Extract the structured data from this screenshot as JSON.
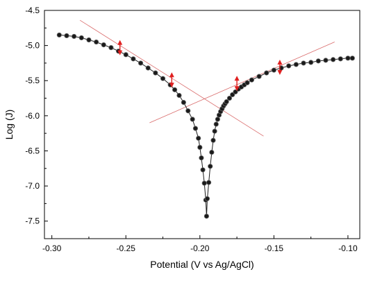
{
  "chart_data": {
    "type": "scatter",
    "title": "",
    "xlabel": "Potential (V vs Ag/AgCl)",
    "ylabel": "Log (J)",
    "xlim": [
      -0.305,
      -0.092
    ],
    "ylim": [
      -7.75,
      -4.5
    ],
    "x_ticks": [
      -0.3,
      -0.25,
      -0.2,
      -0.15,
      -0.1
    ],
    "y_ticks": [
      -7.5,
      -7.0,
      -6.5,
      -6.0,
      -5.5,
      -5.0,
      -4.5
    ],
    "x_tick_labels": [
      "-0.30",
      "-0.25",
      "-0.20",
      "-0.15",
      "-0.10"
    ],
    "y_tick_labels": [
      "-7.5",
      "-7.0",
      "-6.5",
      "-6.0",
      "-5.5",
      "-5.0",
      "-4.5"
    ],
    "grid": false,
    "legend": "none",
    "colors": {
      "data": "#1a1a1a",
      "tafel": "#d96a6a",
      "marker": "#e02020"
    },
    "series": [
      {
        "values_x": [
          -0.295,
          -0.29,
          -0.285,
          -0.28,
          -0.275,
          -0.27,
          -0.265,
          -0.26,
          -0.255,
          -0.25,
          -0.245,
          -0.24,
          -0.235,
          -0.23,
          -0.225,
          -0.22,
          -0.217,
          -0.214,
          -0.211,
          -0.208,
          -0.205,
          -0.203,
          -0.201,
          -0.2,
          -0.199,
          -0.198,
          -0.197,
          -0.196,
          -0.1955,
          -0.195,
          -0.194,
          -0.193,
          -0.192,
          -0.191,
          -0.19,
          -0.189,
          -0.188,
          -0.187,
          -0.186,
          -0.185,
          -0.184,
          -0.183,
          -0.182,
          -0.18,
          -0.178,
          -0.176,
          -0.174,
          -0.172,
          -0.17,
          -0.168,
          -0.165,
          -0.16,
          -0.155,
          -0.15,
          -0.145,
          -0.14,
          -0.135,
          -0.13,
          -0.125,
          -0.12,
          -0.115,
          -0.11,
          -0.105,
          -0.1,
          -0.097
        ],
        "values_y": [
          -4.85,
          -4.86,
          -4.87,
          -4.89,
          -4.92,
          -4.95,
          -4.99,
          -5.03,
          -5.08,
          -5.13,
          -5.19,
          -5.25,
          -5.32,
          -5.39,
          -5.47,
          -5.56,
          -5.63,
          -5.71,
          -5.81,
          -5.93,
          -6.05,
          -6.18,
          -6.32,
          -6.45,
          -6.6,
          -6.77,
          -6.96,
          -7.2,
          -7.43,
          -7.18,
          -6.95,
          -6.72,
          -6.52,
          -6.35,
          -6.22,
          -6.12,
          -6.05,
          -5.99,
          -5.94,
          -5.9,
          -5.86,
          -5.83,
          -5.8,
          -5.75,
          -5.7,
          -5.66,
          -5.62,
          -5.59,
          -5.56,
          -5.53,
          -5.49,
          -5.44,
          -5.39,
          -5.35,
          -5.32,
          -5.29,
          -5.27,
          -5.25,
          -5.24,
          -5.22,
          -5.21,
          -5.2,
          -5.19,
          -5.18,
          -5.18
        ]
      }
    ],
    "tafel_lines": [
      {
        "x": [
          -0.281,
          -0.157
        ],
        "y": [
          -4.64,
          -6.29
        ]
      },
      {
        "x": [
          -0.234,
          -0.109
        ],
        "y": [
          -6.1,
          -4.95
        ]
      }
    ],
    "markers": [
      {
        "x": -0.254,
        "y": -5.03
      },
      {
        "x": -0.219,
        "y": -5.49
      },
      {
        "x": -0.175,
        "y": -5.54
      },
      {
        "x": -0.146,
        "y": -5.31
      }
    ]
  }
}
